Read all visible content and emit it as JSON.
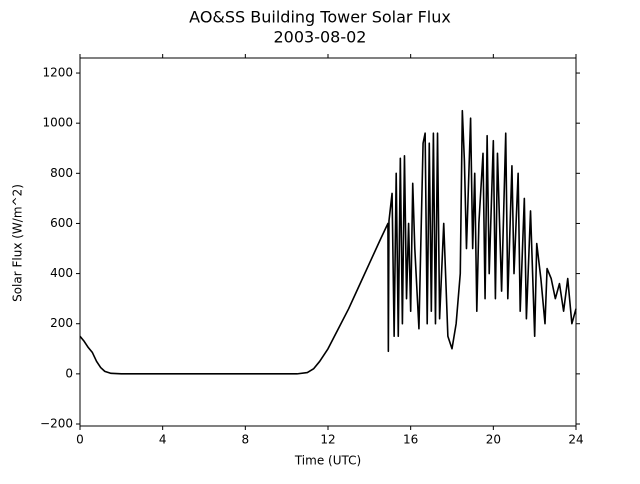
{
  "chart_data": {
    "type": "line",
    "title": "AO&SS Building Tower Solar Flux",
    "subtitle": "2003-08-02",
    "x_label": "Time (UTC)",
    "y_label": "Solar Flux (W/m^2)",
    "xlim": [
      0,
      24
    ],
    "xticks": [
      0,
      4,
      8,
      12,
      16,
      20,
      24
    ],
    "ylim": [
      -208,
      1260
    ],
    "yticks": [
      {
        "value": -200,
        "label": "−200"
      },
      0,
      200,
      400,
      600,
      800,
      1000,
      1200
    ],
    "series": [
      {
        "color": "#000000",
        "x": [
          0,
          0.2,
          0.4,
          0.6,
          0.8,
          1.0,
          1.2,
          1.5,
          2,
          10.5,
          11,
          11.3,
          11.6,
          12,
          12.5,
          13,
          13.5,
          14,
          14.5,
          14.9,
          14.92,
          14.95,
          15.1,
          15.2,
          15.3,
          15.4,
          15.5,
          15.6,
          15.7,
          15.8,
          15.9,
          16.0,
          16.1,
          16.2,
          16.4,
          16.6,
          16.7,
          16.8,
          16.9,
          17.0,
          17.1,
          17.2,
          17.3,
          17.4,
          17.6,
          17.8,
          18.0,
          18.2,
          18.4,
          18.5,
          18.6,
          18.7,
          18.9,
          19.0,
          19.1,
          19.2,
          19.3,
          19.5,
          19.6,
          19.7,
          19.8,
          20.0,
          20.1,
          20.2,
          20.4,
          20.6,
          20.7,
          20.9,
          21.0,
          21.2,
          21.3,
          21.5,
          21.6,
          21.8,
          22.0,
          22.1,
          22.3,
          22.5,
          22.6,
          22.8,
          23.0,
          23.2,
          23.4,
          23.6,
          23.8,
          24.0
        ],
        "values": [
          150,
          130,
          105,
          85,
          50,
          25,
          10,
          2,
          0,
          0,
          5,
          20,
          50,
          100,
          180,
          260,
          350,
          440,
          530,
          600,
          90,
          610,
          720,
          150,
          800,
          150,
          860,
          200,
          870,
          300,
          600,
          250,
          760,
          500,
          180,
          920,
          960,
          200,
          920,
          250,
          960,
          200,
          960,
          220,
          600,
          150,
          100,
          200,
          400,
          1050,
          850,
          500,
          1020,
          500,
          800,
          250,
          600,
          880,
          300,
          950,
          400,
          930,
          300,
          880,
          330,
          960,
          300,
          830,
          400,
          800,
          250,
          700,
          220,
          650,
          150,
          520,
          380,
          200,
          420,
          380,
          300,
          360,
          250,
          380,
          200,
          260
        ]
      }
    ]
  }
}
